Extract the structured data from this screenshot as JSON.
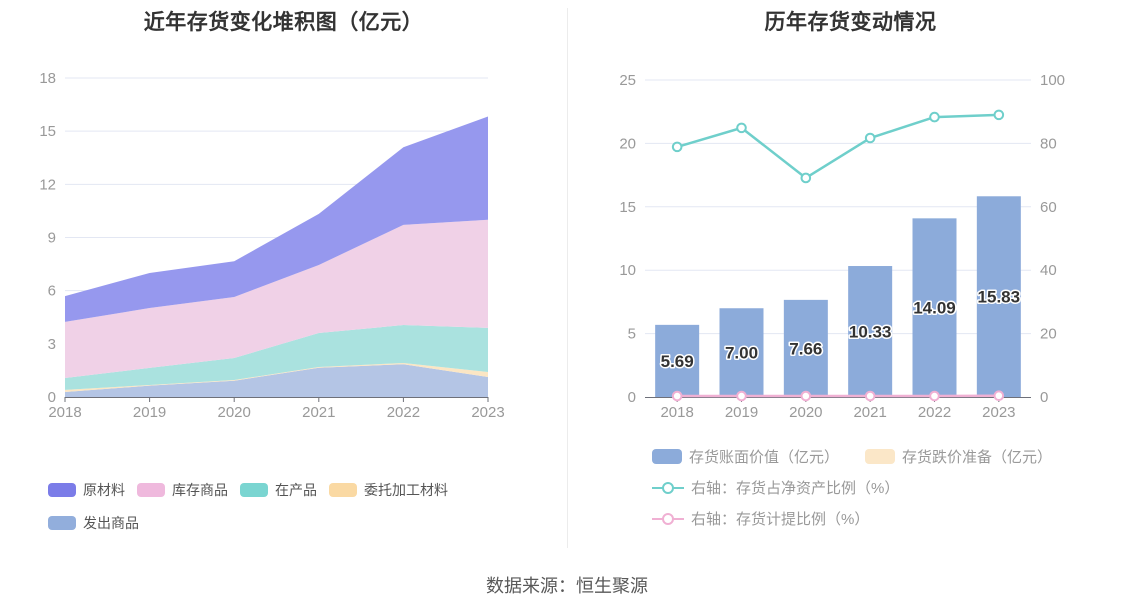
{
  "page": {
    "source_note": "数据来源：恒生聚源"
  },
  "palette": {
    "title_color": "#333333",
    "axis_label_color": "#999999",
    "axis_line_color": "#6E7079",
    "gridline_color": "#E3E7F3",
    "divider_color": "#ECECEC",
    "bar_label_color": "#333333",
    "left_legend_text_color": "#555555",
    "right_legend_text_color": "#999999",
    "source_text_color": "#595959"
  },
  "chart_data": [
    {
      "type": "area",
      "stacked": true,
      "title": "近年存货变化堆积图（亿元）",
      "x": [
        "2018",
        "2019",
        "2020",
        "2021",
        "2022",
        "2023"
      ],
      "ylim": [
        0,
        18
      ],
      "y_ticks": [
        0,
        3,
        6,
        9,
        12,
        15,
        18
      ],
      "grid": true,
      "legend_position": "bottom-left",
      "series": [
        {
          "id": "shipped-goods",
          "name": "发出商品",
          "values": [
            0.28,
            0.64,
            0.92,
            1.65,
            1.85,
            1.13
          ],
          "legend_color": "#92AEDC",
          "area_color": "#B4C5E5"
        },
        {
          "id": "consigned-processing-materials",
          "name": "委托加工材料",
          "values": [
            0.12,
            0.04,
            0.04,
            0.04,
            0.07,
            0.28
          ],
          "legend_color": "#FAD9A3",
          "area_color": "#FBE6C4"
        },
        {
          "id": "work-in-progress",
          "name": "在产品",
          "values": [
            0.67,
            0.96,
            1.24,
            1.92,
            2.14,
            2.49
          ],
          "legend_color": "#7AD5D1",
          "area_color": "#AAE2DF"
        },
        {
          "id": "stock-goods",
          "name": "库存商品",
          "values": [
            3.17,
            3.38,
            3.44,
            3.84,
            5.65,
            6.1
          ],
          "legend_color": "#EFB9DD",
          "area_color": "#F0D1E7"
        },
        {
          "id": "raw-materials",
          "name": "原材料",
          "values": [
            1.45,
            1.98,
            2.02,
            2.88,
            4.38,
            5.83
          ],
          "legend_color": "#7B7CE8",
          "area_color": "#9698EE"
        }
      ],
      "legend_order": [
        4,
        3,
        2,
        1,
        0
      ],
      "stack_totals": [
        5.69,
        7.0,
        7.66,
        10.33,
        14.09,
        15.83
      ]
    },
    {
      "type": "bar",
      "title": "历年存货变动情况",
      "x": [
        "2018",
        "2019",
        "2020",
        "2021",
        "2022",
        "2023"
      ],
      "ylim_left": [
        0,
        25
      ],
      "ylim_right": [
        0,
        100
      ],
      "y_ticks_left": [
        0,
        5,
        10,
        15,
        20,
        25
      ],
      "y_ticks_right": [
        0,
        20,
        40,
        60,
        80,
        100
      ],
      "grid": true,
      "legend_position": "bottom",
      "bars": [
        {
          "id": "inventory-book-value",
          "name": "存货账面价值（亿元）",
          "color": "#8CABDA",
          "values": [
            5.69,
            7.0,
            7.66,
            10.33,
            14.09,
            15.83
          ],
          "labels": [
            "5.69",
            "7.00",
            "7.66",
            "10.33",
            "14.09",
            "15.83"
          ]
        },
        {
          "id": "inventory-impairment-provision",
          "name": "存货跌价准备（亿元）",
          "color": "#FBE7C8",
          "values": [
            0,
            0,
            0,
            0,
            0,
            0
          ],
          "labels": []
        }
      ],
      "lines": [
        {
          "id": "inventory-to-net-assets-ratio",
          "name": "右轴：存货占净资产比例（%）",
          "axis": "right",
          "color": "#6FCFCB",
          "values": [
            78.9,
            84.9,
            69.1,
            81.7,
            88.3,
            89.0
          ]
        },
        {
          "id": "inventory-provision-ratio",
          "name": "右轴：存货计提比例（%）",
          "axis": "right",
          "color": "#F0B0D3",
          "values": [
            0.3,
            0.3,
            0.3,
            0.3,
            0.3,
            0.4
          ]
        }
      ]
    }
  ]
}
